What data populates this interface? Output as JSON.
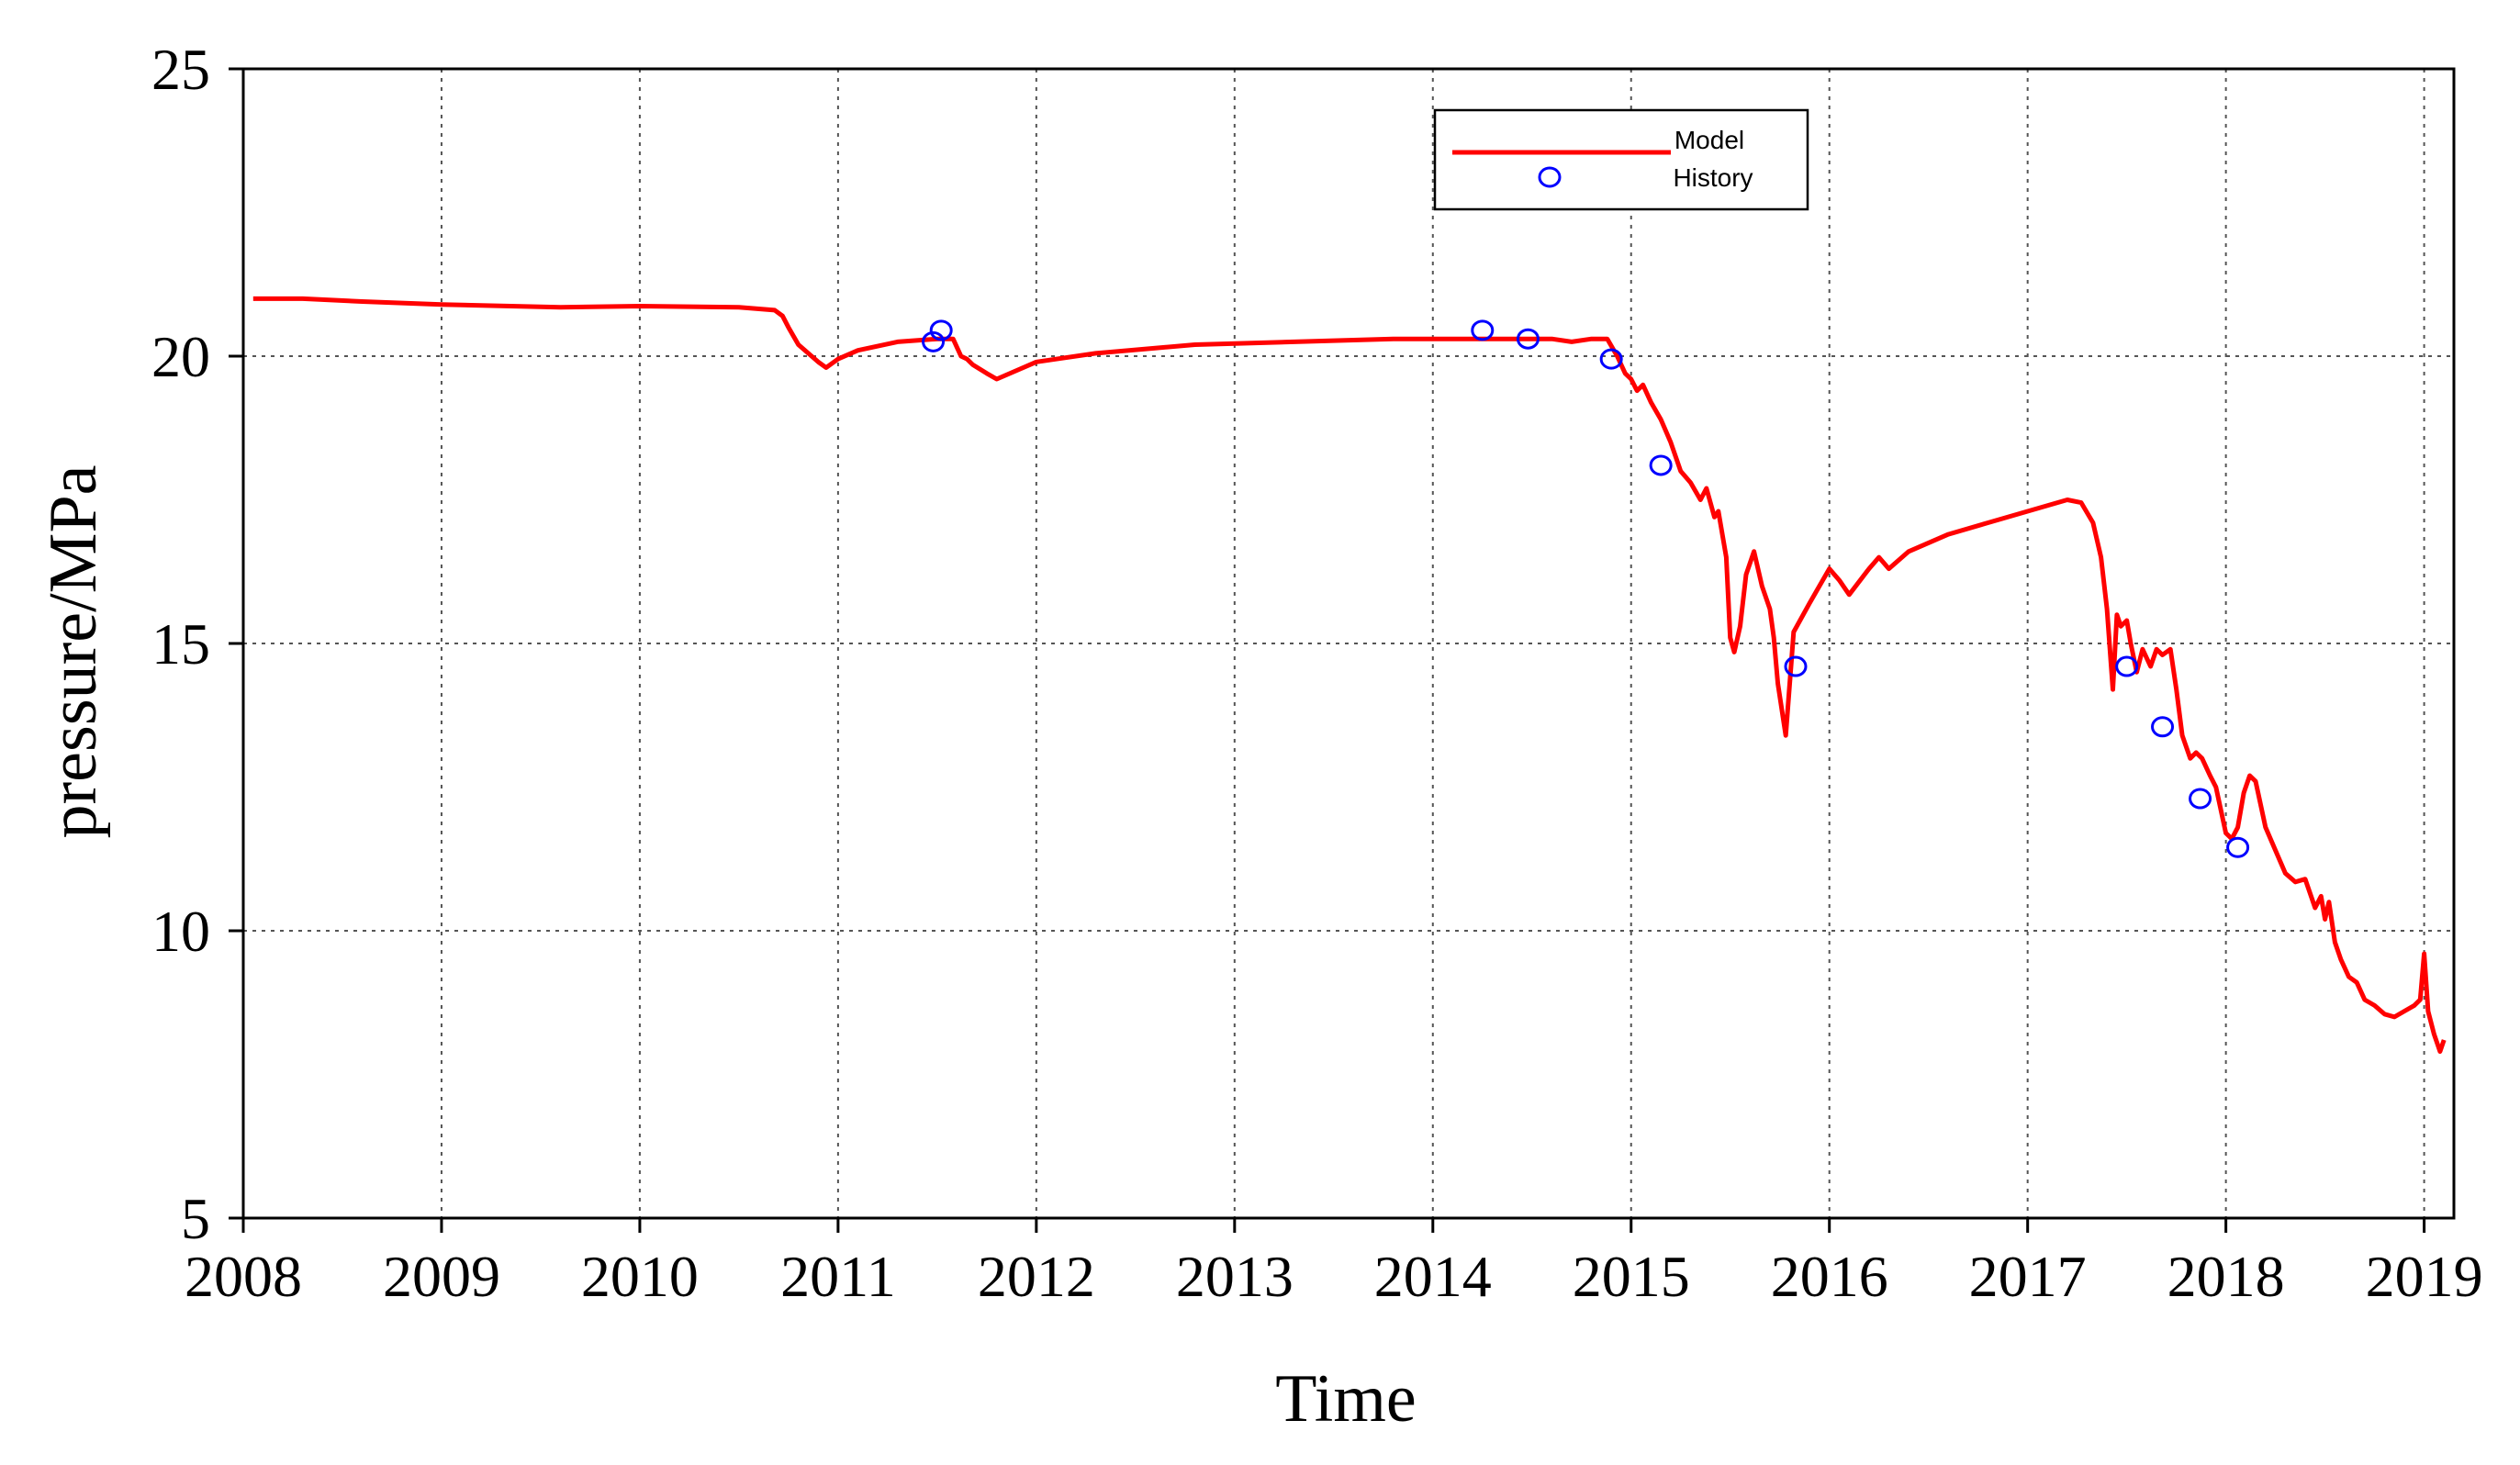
{
  "chart_data": {
    "type": "line",
    "xlabel": "Time",
    "ylabel": "pressure/MPa",
    "xlim": [
      2008,
      2019.15
    ],
    "ylim": [
      5,
      25
    ],
    "x_ticks": [
      2008,
      2009,
      2010,
      2011,
      2012,
      2013,
      2014,
      2015,
      2016,
      2017,
      2018,
      2019
    ],
    "y_ticks": [
      5,
      10,
      15,
      20,
      25
    ],
    "grid": true,
    "legend_position": "top-center",
    "series": [
      {
        "name": "Model",
        "kind": "line",
        "color": "#ff0000",
        "x": [
          2008.05,
          2008.3,
          2008.6,
          2009.0,
          2009.6,
          2010.0,
          2010.5,
          2010.68,
          2010.72,
          2010.75,
          2010.8,
          2010.9,
          2010.94,
          2011.0,
          2011.1,
          2011.3,
          2011.5,
          2011.58,
          2011.62,
          2011.65,
          2011.68,
          2011.75,
          2011.8,
          2012.0,
          2012.3,
          2012.8,
          2013.3,
          2013.8,
          2014.3,
          2014.6,
          2014.7,
          2014.8,
          2014.88,
          2014.93,
          2014.97,
          2015.0,
          2015.03,
          2015.06,
          2015.1,
          2015.15,
          2015.2,
          2015.25,
          2015.3,
          2015.35,
          2015.38,
          2015.42,
          2015.44,
          2015.48,
          2015.5,
          2015.52,
          2015.55,
          2015.58,
          2015.62,
          2015.66,
          2015.7,
          2015.72,
          2015.74,
          2015.78,
          2015.82,
          2015.9,
          2015.95,
          2016.0,
          2016.05,
          2016.1,
          2016.2,
          2016.25,
          2016.3,
          2016.4,
          2016.6,
          2016.8,
          2017.0,
          2017.2,
          2017.27,
          2017.33,
          2017.37,
          2017.4,
          2017.43,
          2017.45,
          2017.47,
          2017.5,
          2017.52,
          2017.55,
          2017.58,
          2017.62,
          2017.65,
          2017.68,
          2017.72,
          2017.75,
          2017.78,
          2017.82,
          2017.85,
          2017.88,
          2017.92,
          2017.95,
          2018.0,
          2018.03,
          2018.06,
          2018.09,
          2018.12,
          2018.15,
          2018.2,
          2018.25,
          2018.3,
          2018.35,
          2018.4,
          2018.45,
          2018.48,
          2018.5,
          2018.52,
          2018.55,
          2018.58,
          2018.62,
          2018.66,
          2018.7,
          2018.75,
          2018.8,
          2018.85,
          2018.9,
          2018.95,
          2018.98,
          2019.0,
          2019.02,
          2019.05,
          2019.08,
          2019.1
        ],
        "y": [
          21.0,
          21.0,
          20.95,
          20.9,
          20.85,
          20.87,
          20.85,
          20.8,
          20.7,
          20.5,
          20.2,
          19.9,
          19.8,
          19.95,
          20.1,
          20.25,
          20.3,
          20.3,
          20.0,
          19.95,
          19.85,
          19.7,
          19.6,
          19.9,
          20.05,
          20.2,
          20.25,
          20.3,
          20.3,
          20.3,
          20.25,
          20.3,
          20.3,
          20.0,
          19.7,
          19.6,
          19.4,
          19.5,
          19.2,
          18.9,
          18.5,
          18.0,
          17.8,
          17.5,
          17.7,
          17.2,
          17.3,
          16.5,
          15.1,
          14.85,
          15.3,
          16.2,
          16.6,
          16.0,
          15.6,
          15.1,
          14.3,
          13.4,
          15.2,
          15.7,
          16.0,
          16.3,
          16.1,
          15.85,
          16.3,
          16.5,
          16.3,
          16.6,
          16.9,
          17.1,
          17.3,
          17.5,
          17.45,
          17.1,
          16.5,
          15.6,
          14.2,
          15.5,
          15.3,
          15.4,
          15.0,
          14.5,
          14.9,
          14.6,
          14.9,
          14.8,
          14.9,
          14.2,
          13.4,
          13.0,
          13.1,
          13.0,
          12.7,
          12.5,
          11.7,
          11.6,
          11.8,
          12.4,
          12.7,
          12.6,
          11.8,
          11.4,
          11.0,
          10.85,
          10.9,
          10.4,
          10.6,
          10.2,
          10.5,
          9.8,
          9.5,
          9.2,
          9.1,
          8.8,
          8.7,
          8.55,
          8.5,
          8.6,
          8.7,
          8.8,
          9.6,
          8.6,
          8.2,
          7.9,
          8.1
        ]
      },
      {
        "name": "History",
        "kind": "scatter",
        "color": "#0000ff",
        "x": [
          2011.48,
          2011.52,
          2014.25,
          2014.48,
          2014.9,
          2015.15,
          2015.83,
          2017.5,
          2017.68,
          2017.87,
          2018.06
        ],
        "y": [
          20.25,
          20.45,
          20.45,
          20.3,
          19.95,
          18.1,
          14.6,
          14.6,
          13.55,
          12.3,
          11.45
        ]
      }
    ]
  }
}
